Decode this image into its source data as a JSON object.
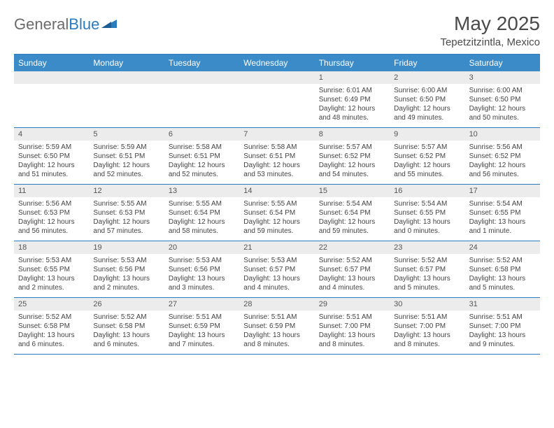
{
  "brand": {
    "part1": "General",
    "part2": "Blue"
  },
  "title": "May 2025",
  "location": "Tepetzitzintla, Mexico",
  "colors": {
    "header_bg": "#3b8bc8",
    "header_text": "#ffffff",
    "border": "#2b7bbf",
    "date_bg": "#ececec",
    "text": "#444444",
    "logo_gray": "#6b6b6b",
    "logo_blue": "#2b7bbf"
  },
  "day_names": [
    "Sunday",
    "Monday",
    "Tuesday",
    "Wednesday",
    "Thursday",
    "Friday",
    "Saturday"
  ],
  "weeks": [
    [
      {
        "empty": true
      },
      {
        "empty": true
      },
      {
        "empty": true
      },
      {
        "empty": true
      },
      {
        "date": "1",
        "sunrise": "Sunrise: 6:01 AM",
        "sunset": "Sunset: 6:49 PM",
        "day1": "Daylight: 12 hours",
        "day2": "and 48 minutes."
      },
      {
        "date": "2",
        "sunrise": "Sunrise: 6:00 AM",
        "sunset": "Sunset: 6:50 PM",
        "day1": "Daylight: 12 hours",
        "day2": "and 49 minutes."
      },
      {
        "date": "3",
        "sunrise": "Sunrise: 6:00 AM",
        "sunset": "Sunset: 6:50 PM",
        "day1": "Daylight: 12 hours",
        "day2": "and 50 minutes."
      }
    ],
    [
      {
        "date": "4",
        "sunrise": "Sunrise: 5:59 AM",
        "sunset": "Sunset: 6:50 PM",
        "day1": "Daylight: 12 hours",
        "day2": "and 51 minutes."
      },
      {
        "date": "5",
        "sunrise": "Sunrise: 5:59 AM",
        "sunset": "Sunset: 6:51 PM",
        "day1": "Daylight: 12 hours",
        "day2": "and 52 minutes."
      },
      {
        "date": "6",
        "sunrise": "Sunrise: 5:58 AM",
        "sunset": "Sunset: 6:51 PM",
        "day1": "Daylight: 12 hours",
        "day2": "and 52 minutes."
      },
      {
        "date": "7",
        "sunrise": "Sunrise: 5:58 AM",
        "sunset": "Sunset: 6:51 PM",
        "day1": "Daylight: 12 hours",
        "day2": "and 53 minutes."
      },
      {
        "date": "8",
        "sunrise": "Sunrise: 5:57 AM",
        "sunset": "Sunset: 6:52 PM",
        "day1": "Daylight: 12 hours",
        "day2": "and 54 minutes."
      },
      {
        "date": "9",
        "sunrise": "Sunrise: 5:57 AM",
        "sunset": "Sunset: 6:52 PM",
        "day1": "Daylight: 12 hours",
        "day2": "and 55 minutes."
      },
      {
        "date": "10",
        "sunrise": "Sunrise: 5:56 AM",
        "sunset": "Sunset: 6:52 PM",
        "day1": "Daylight: 12 hours",
        "day2": "and 56 minutes."
      }
    ],
    [
      {
        "date": "11",
        "sunrise": "Sunrise: 5:56 AM",
        "sunset": "Sunset: 6:53 PM",
        "day1": "Daylight: 12 hours",
        "day2": "and 56 minutes."
      },
      {
        "date": "12",
        "sunrise": "Sunrise: 5:55 AM",
        "sunset": "Sunset: 6:53 PM",
        "day1": "Daylight: 12 hours",
        "day2": "and 57 minutes."
      },
      {
        "date": "13",
        "sunrise": "Sunrise: 5:55 AM",
        "sunset": "Sunset: 6:54 PM",
        "day1": "Daylight: 12 hours",
        "day2": "and 58 minutes."
      },
      {
        "date": "14",
        "sunrise": "Sunrise: 5:55 AM",
        "sunset": "Sunset: 6:54 PM",
        "day1": "Daylight: 12 hours",
        "day2": "and 59 minutes."
      },
      {
        "date": "15",
        "sunrise": "Sunrise: 5:54 AM",
        "sunset": "Sunset: 6:54 PM",
        "day1": "Daylight: 12 hours",
        "day2": "and 59 minutes."
      },
      {
        "date": "16",
        "sunrise": "Sunrise: 5:54 AM",
        "sunset": "Sunset: 6:55 PM",
        "day1": "Daylight: 13 hours",
        "day2": "and 0 minutes."
      },
      {
        "date": "17",
        "sunrise": "Sunrise: 5:54 AM",
        "sunset": "Sunset: 6:55 PM",
        "day1": "Daylight: 13 hours",
        "day2": "and 1 minute."
      }
    ],
    [
      {
        "date": "18",
        "sunrise": "Sunrise: 5:53 AM",
        "sunset": "Sunset: 6:55 PM",
        "day1": "Daylight: 13 hours",
        "day2": "and 2 minutes."
      },
      {
        "date": "19",
        "sunrise": "Sunrise: 5:53 AM",
        "sunset": "Sunset: 6:56 PM",
        "day1": "Daylight: 13 hours",
        "day2": "and 2 minutes."
      },
      {
        "date": "20",
        "sunrise": "Sunrise: 5:53 AM",
        "sunset": "Sunset: 6:56 PM",
        "day1": "Daylight: 13 hours",
        "day2": "and 3 minutes."
      },
      {
        "date": "21",
        "sunrise": "Sunrise: 5:53 AM",
        "sunset": "Sunset: 6:57 PM",
        "day1": "Daylight: 13 hours",
        "day2": "and 4 minutes."
      },
      {
        "date": "22",
        "sunrise": "Sunrise: 5:52 AM",
        "sunset": "Sunset: 6:57 PM",
        "day1": "Daylight: 13 hours",
        "day2": "and 4 minutes."
      },
      {
        "date": "23",
        "sunrise": "Sunrise: 5:52 AM",
        "sunset": "Sunset: 6:57 PM",
        "day1": "Daylight: 13 hours",
        "day2": "and 5 minutes."
      },
      {
        "date": "24",
        "sunrise": "Sunrise: 5:52 AM",
        "sunset": "Sunset: 6:58 PM",
        "day1": "Daylight: 13 hours",
        "day2": "and 5 minutes."
      }
    ],
    [
      {
        "date": "25",
        "sunrise": "Sunrise: 5:52 AM",
        "sunset": "Sunset: 6:58 PM",
        "day1": "Daylight: 13 hours",
        "day2": "and 6 minutes."
      },
      {
        "date": "26",
        "sunrise": "Sunrise: 5:52 AM",
        "sunset": "Sunset: 6:58 PM",
        "day1": "Daylight: 13 hours",
        "day2": "and 6 minutes."
      },
      {
        "date": "27",
        "sunrise": "Sunrise: 5:51 AM",
        "sunset": "Sunset: 6:59 PM",
        "day1": "Daylight: 13 hours",
        "day2": "and 7 minutes."
      },
      {
        "date": "28",
        "sunrise": "Sunrise: 5:51 AM",
        "sunset": "Sunset: 6:59 PM",
        "day1": "Daylight: 13 hours",
        "day2": "and 8 minutes."
      },
      {
        "date": "29",
        "sunrise": "Sunrise: 5:51 AM",
        "sunset": "Sunset: 7:00 PM",
        "day1": "Daylight: 13 hours",
        "day2": "and 8 minutes."
      },
      {
        "date": "30",
        "sunrise": "Sunrise: 5:51 AM",
        "sunset": "Sunset: 7:00 PM",
        "day1": "Daylight: 13 hours",
        "day2": "and 8 minutes."
      },
      {
        "date": "31",
        "sunrise": "Sunrise: 5:51 AM",
        "sunset": "Sunset: 7:00 PM",
        "day1": "Daylight: 13 hours",
        "day2": "and 9 minutes."
      }
    ]
  ]
}
